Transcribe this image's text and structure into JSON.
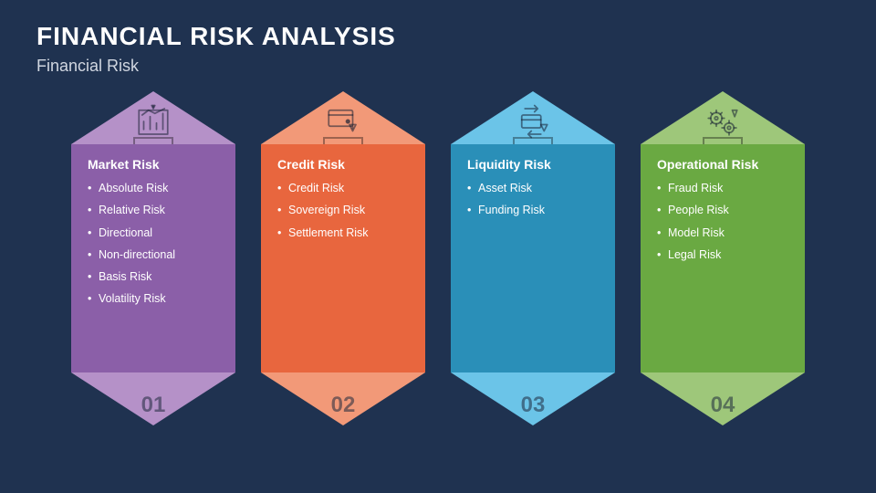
{
  "header": {
    "title": "FINANCIAL RISK ANALYSIS",
    "subtitle": "Financial Risk"
  },
  "background_color": "#1f3250",
  "cards": [
    {
      "number": "01",
      "heading": "Market Risk",
      "items": [
        "Absolute Risk",
        "Relative Risk",
        "Directional",
        "Non-directional",
        "Basis Risk",
        "Volatility Risk"
      ],
      "color_main": "#8b5fa8",
      "color_light": "#b591c8",
      "icon": "chart"
    },
    {
      "number": "02",
      "heading": "Credit Risk",
      "items": [
        "Credit Risk",
        "Sovereign Risk",
        "Settlement Risk"
      ],
      "color_main": "#e8663e",
      "color_light": "#f29978",
      "icon": "card"
    },
    {
      "number": "03",
      "heading": "Liquidity Risk",
      "items": [
        "Asset Risk",
        "Funding Risk"
      ],
      "color_main": "#2a8fb8",
      "color_light": "#6bc4e8",
      "icon": "transfer"
    },
    {
      "number": "04",
      "heading": "Operational Risk",
      "items": [
        "Fraud Risk",
        "People Risk",
        "Model Risk",
        "Legal Risk"
      ],
      "color_main": "#6aa942",
      "color_light": "#9ec77a",
      "icon": "gears"
    }
  ]
}
